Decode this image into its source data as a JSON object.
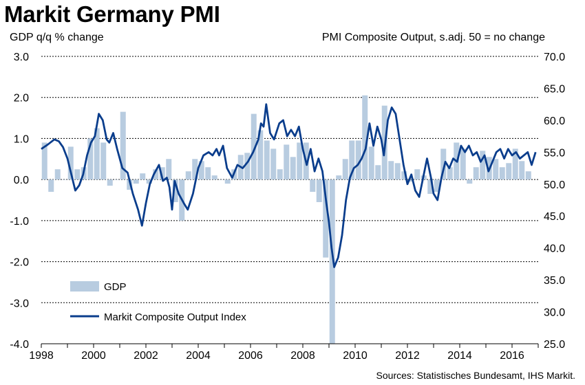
{
  "title": "Markit Germany PMI",
  "left_axis_label": "GDP q/q % change",
  "right_axis_label": "PMI Composite  Output, s.adj. 50 = no change",
  "source": "Sources: Statistisches Bundesamt, IHS Markit.",
  "colors": {
    "gdp": "#b8cce0",
    "pmi": "#0a3d8c"
  },
  "chart_data": {
    "type": "bar+line",
    "title": "Markit Germany PMI",
    "legend_placement": "bottom-left",
    "grid": "horizontal dashed",
    "x_axis": {
      "min": 1998,
      "max": 2017,
      "ticks": [
        "1998",
        "2000",
        "2002",
        "2004",
        "2006",
        "2008",
        "2010",
        "2012",
        "2014",
        "2016"
      ]
    },
    "y_left": {
      "label": "GDP q/q % change",
      "min": -4.0,
      "max": 3.0,
      "ticks": [
        "3.0",
        "2.0",
        "1.0",
        "0.0",
        "-1.0",
        "-2.0",
        "-3.0",
        "-4.0"
      ],
      "tick_values": [
        3,
        2,
        1,
        0,
        -1,
        -2,
        -3,
        -4
      ]
    },
    "y_right": {
      "label": "PMI Composite  Output, s.adj. 50 = no change",
      "min": 25.0,
      "max": 70.0,
      "ticks": [
        "70.0",
        "65.0",
        "60.0",
        "55.0",
        "50.0",
        "45.0",
        "40.0",
        "35.0",
        "30.0",
        "25.0"
      ],
      "tick_values": [
        70,
        65,
        60,
        55,
        50,
        45,
        40,
        35,
        30,
        25
      ]
    },
    "series": [
      {
        "name": "GDP",
        "type": "bar",
        "axis": "left",
        "x": [
          1998.125,
          1998.375,
          1998.625,
          1998.875,
          1999.125,
          1999.375,
          1999.625,
          1999.875,
          2000.125,
          2000.375,
          2000.625,
          2000.875,
          2001.125,
          2001.375,
          2001.625,
          2001.875,
          2002.125,
          2002.375,
          2002.625,
          2002.875,
          2003.125,
          2003.375,
          2003.625,
          2003.875,
          2004.125,
          2004.375,
          2004.625,
          2004.875,
          2005.125,
          2005.375,
          2005.625,
          2005.875,
          2006.125,
          2006.375,
          2006.625,
          2006.875,
          2007.125,
          2007.375,
          2007.625,
          2007.875,
          2008.125,
          2008.375,
          2008.625,
          2008.875,
          2009.125,
          2009.375,
          2009.625,
          2009.875,
          2010.125,
          2010.375,
          2010.625,
          2010.875,
          2011.125,
          2011.375,
          2011.625,
          2011.875,
          2012.125,
          2012.375,
          2012.625,
          2012.875,
          2013.125,
          2013.375,
          2013.625,
          2013.875,
          2014.125,
          2014.375,
          2014.625,
          2014.875,
          2015.125,
          2015.375,
          2015.625,
          2015.875,
          2016.125,
          2016.375,
          2016.625
        ],
        "values": [
          0.9,
          -0.3,
          0.25,
          0.0,
          0.8,
          0.25,
          0.3,
          1.0,
          1.25,
          0.9,
          -0.15,
          0.0,
          1.65,
          -0.25,
          -0.1,
          0.15,
          -0.1,
          0.25,
          0.3,
          0.5,
          -0.55,
          -1.0,
          0.2,
          0.5,
          0.45,
          0.3,
          0.1,
          0.0,
          -0.1,
          0.25,
          0.6,
          0.65,
          1.6,
          1.2,
          0.95,
          0.75,
          0.25,
          0.85,
          0.55,
          0.9,
          0.9,
          -0.3,
          -0.55,
          -1.9,
          -4.0,
          0.1,
          0.5,
          0.95,
          0.95,
          2.05,
          0.8,
          0.35,
          1.8,
          0.45,
          0.4,
          0.2,
          -0.05,
          0.25,
          0.1,
          -0.35,
          -0.3,
          0.75,
          0.3,
          0.9,
          0.75,
          -0.1,
          0.3,
          0.7,
          0.55,
          0.5,
          0.3,
          0.4,
          0.75,
          0.45,
          0.2
        ]
      },
      {
        "name": "Markit Composite Output Index",
        "type": "line",
        "axis": "right",
        "x": [
          1998.0,
          1998.25,
          1998.5,
          1998.67,
          1998.83,
          1999.0,
          1999.15,
          1999.3,
          1999.45,
          1999.6,
          1999.75,
          1999.9,
          2000.05,
          2000.2,
          2000.35,
          2000.5,
          2000.6,
          2000.75,
          2000.9,
          2001.1,
          2001.3,
          2001.5,
          2001.7,
          2001.85,
          2002.0,
          2002.15,
          2002.3,
          2002.5,
          2002.65,
          2002.8,
          2002.9,
          2003.0,
          2003.1,
          2003.25,
          2003.45,
          2003.6,
          2003.8,
          2004.0,
          2004.2,
          2004.4,
          2004.55,
          2004.7,
          2004.8,
          2004.95,
          2005.1,
          2005.3,
          2005.5,
          2005.7,
          2005.9,
          2006.1,
          2006.3,
          2006.4,
          2006.5,
          2006.6,
          2006.75,
          2006.9,
          2007.1,
          2007.25,
          2007.4,
          2007.55,
          2007.7,
          2007.85,
          2008.0,
          2008.15,
          2008.3,
          2008.45,
          2008.6,
          2008.75,
          2008.9,
          2009.0,
          2009.1,
          2009.2,
          2009.35,
          2009.5,
          2009.65,
          2009.8,
          2009.95,
          2010.1,
          2010.25,
          2010.4,
          2010.55,
          2010.7,
          2010.85,
          2011.0,
          2011.1,
          2011.25,
          2011.4,
          2011.55,
          2011.7,
          2011.85,
          2012.0,
          2012.15,
          2012.3,
          2012.45,
          2012.6,
          2012.75,
          2012.9,
          2013.0,
          2013.15,
          2013.3,
          2013.45,
          2013.6,
          2013.75,
          2013.9,
          2014.05,
          2014.2,
          2014.35,
          2014.5,
          2014.65,
          2014.8,
          2014.95,
          2015.1,
          2015.25,
          2015.4,
          2015.55,
          2015.7,
          2015.85,
          2016.0,
          2016.15,
          2016.3,
          2016.45,
          2016.6,
          2016.75,
          2016.9
        ],
        "values": [
          55.5,
          56.2,
          57.0,
          56.7,
          55.8,
          54.0,
          51.5,
          49.0,
          49.8,
          51.5,
          54.5,
          56.5,
          57.5,
          61.0,
          60.0,
          57.0,
          56.5,
          58.0,
          55.5,
          52.5,
          51.8,
          48.5,
          46.0,
          43.5,
          47.0,
          50.0,
          51.5,
          53.0,
          50.5,
          51.0,
          49.5,
          46.0,
          50.5,
          48.5,
          47.0,
          46.0,
          48.5,
          52.5,
          54.5,
          55.0,
          54.5,
          55.5,
          54.5,
          56.0,
          52.5,
          51.0,
          53.0,
          52.5,
          53.5,
          55.0,
          57.0,
          59.5,
          59.0,
          62.5,
          58.0,
          57.0,
          59.5,
          60.0,
          57.5,
          58.5,
          57.5,
          59.0,
          55.5,
          53.0,
          55.5,
          52.0,
          54.0,
          52.0,
          47.0,
          44.0,
          40.0,
          37.0,
          38.5,
          42.0,
          47.5,
          51.0,
          52.5,
          53.0,
          54.0,
          55.5,
          59.5,
          56.0,
          59.0,
          57.0,
          54.5,
          60.0,
          62.0,
          61.0,
          57.0,
          53.0,
          50.0,
          51.5,
          49.0,
          48.0,
          51.0,
          54.0,
          51.0,
          48.5,
          47.5,
          51.0,
          53.5,
          52.5,
          54.0,
          53.5,
          56.0,
          55.0,
          56.0,
          54.5,
          55.0,
          53.5,
          54.5,
          52.0,
          53.5,
          55.0,
          55.5,
          54.0,
          55.5,
          54.5,
          55.0,
          54.0,
          54.5,
          55.0,
          53.0,
          55.0
        ]
      }
    ]
  },
  "legend": {
    "gdp": "GDP",
    "pmi": "Markit Composite Output Index"
  }
}
